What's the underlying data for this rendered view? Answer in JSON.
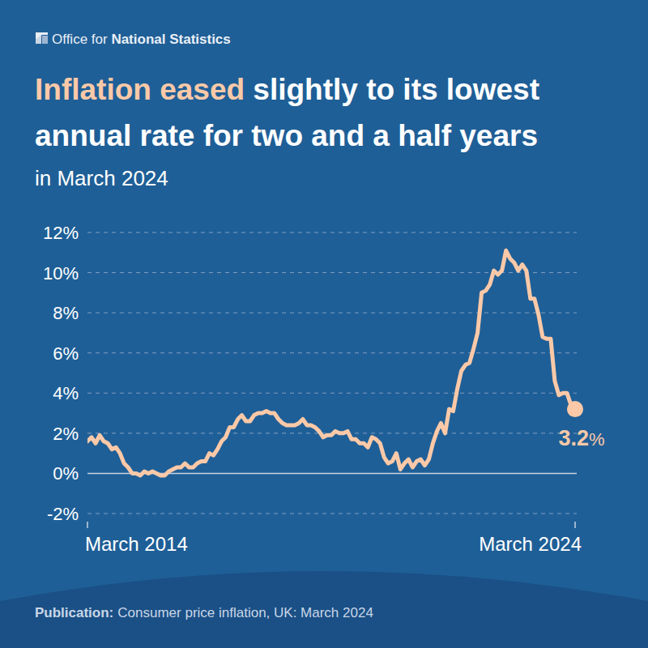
{
  "chart_data": {
    "type": "line",
    "publisher": "Office for National Statistics",
    "title": "Inflation eased slightly to its lowest annual rate for two and a half years",
    "subtitle": "in March 2024",
    "source": {
      "label": "Publication:",
      "text": "Consumer price inflation, UK: March 2024"
    },
    "annotation": "3.2%",
    "color": "#fbc9a8",
    "grid": true,
    "ylim": [
      -2,
      12
    ],
    "yticks": [
      {
        "value": -2,
        "label": "-2%"
      },
      {
        "value": 0,
        "label": "0%"
      },
      {
        "value": 2,
        "label": "2%"
      },
      {
        "value": 4,
        "label": "4%"
      },
      {
        "value": 6,
        "label": "6%"
      },
      {
        "value": 8,
        "label": "8%"
      },
      {
        "value": 10,
        "label": "10%"
      },
      {
        "value": 12,
        "label": "12%"
      }
    ],
    "categories": [
      "March 2014",
      null,
      null,
      null,
      null,
      null,
      null,
      null,
      null,
      null,
      null,
      null,
      null,
      null,
      null,
      null,
      null,
      null,
      null,
      null,
      null,
      null,
      null,
      null,
      null,
      null,
      null,
      null,
      null,
      null,
      null,
      null,
      null,
      null,
      null,
      null,
      null,
      null,
      null,
      null,
      null,
      null,
      null,
      null,
      null,
      null,
      null,
      null,
      null,
      null,
      null,
      null,
      null,
      null,
      null,
      null,
      null,
      null,
      null,
      null,
      null,
      null,
      null,
      null,
      null,
      null,
      null,
      null,
      null,
      null,
      null,
      null,
      null,
      null,
      null,
      null,
      null,
      null,
      null,
      null,
      null,
      null,
      null,
      null,
      null,
      null,
      null,
      null,
      null,
      null,
      null,
      null,
      null,
      null,
      null,
      null,
      null,
      null,
      null,
      null,
      null,
      null,
      null,
      null,
      null,
      null,
      null,
      null,
      null,
      null,
      null,
      null,
      null,
      null,
      null,
      null,
      null,
      null,
      null,
      null,
      "March 2024"
    ],
    "values": [
      1.6,
      1.8,
      1.5,
      1.9,
      1.6,
      1.5,
      1.2,
      1.3,
      1.0,
      0.5,
      0.3,
      0.0,
      0.0,
      -0.1,
      0.1,
      0.0,
      0.1,
      0.0,
      -0.1,
      -0.1,
      0.1,
      0.2,
      0.3,
      0.3,
      0.5,
      0.3,
      0.3,
      0.5,
      0.6,
      0.6,
      1.0,
      0.9,
      1.2,
      1.6,
      1.8,
      2.3,
      2.3,
      2.7,
      2.9,
      2.6,
      2.6,
      2.9,
      3.0,
      3.0,
      3.1,
      3.0,
      3.0,
      2.7,
      2.5,
      2.4,
      2.4,
      2.4,
      2.5,
      2.7,
      2.4,
      2.4,
      2.3,
      2.1,
      1.8,
      1.9,
      1.9,
      2.1,
      2.0,
      2.0,
      2.1,
      1.7,
      1.7,
      1.5,
      1.5,
      1.3,
      1.8,
      1.7,
      1.5,
      0.8,
      0.5,
      0.6,
      1.0,
      0.2,
      0.5,
      0.7,
      0.3,
      0.6,
      0.7,
      0.4,
      0.7,
      1.5,
      2.1,
      2.5,
      2.0,
      3.2,
      3.1,
      4.2,
      5.1,
      5.4,
      5.5,
      6.2,
      7.0,
      9.0,
      9.1,
      9.4,
      10.1,
      9.9,
      10.1,
      11.1,
      10.7,
      10.5,
      10.1,
      10.4,
      10.1,
      8.7,
      8.7,
      7.9,
      6.8,
      6.7,
      6.7,
      4.6,
      3.9,
      4.0,
      4.0,
      3.4,
      3.2
    ]
  }
}
